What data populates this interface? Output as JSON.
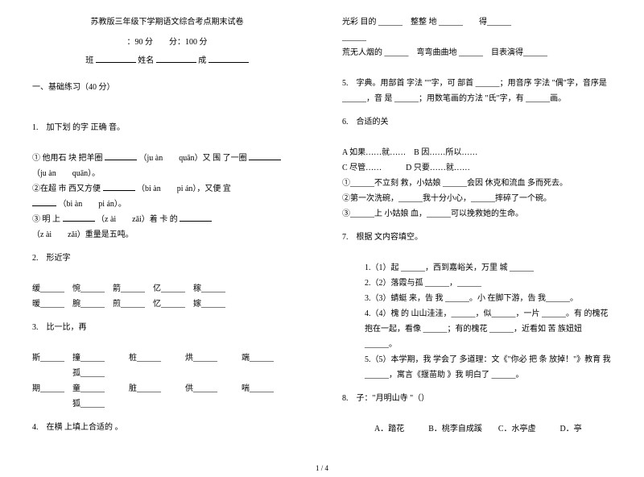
{
  "header": {
    "title": "苏教版三年级下学期语文综合考点期末试卷",
    "time_score": "：90 分　　分：100 分",
    "class_label": "班",
    "name_label": "姓名",
    "score_label": "成"
  },
  "section1": {
    "heading": "一、基础练习（40 分）",
    "q1": {
      "title": "1.　加下划 的字 正确 音。",
      "l1a": "① 他用石 块 把羊圈",
      "l1b": "（ju àn　　quān）又 围 了一圈",
      "l1c": "（ju àn　　quān）。",
      "l2a": "②在超 市 西又方便",
      "l2b": "（bi àn　　pi án），又便 宜",
      "l2c": "（bi àn　　pi án）。",
      "l3a": "③ 明 上",
      "l3b": "（z ài　　zǎi）着 卡 的",
      "l3c": "（z ài　　zǎi）重量是五吨。"
    },
    "q2": {
      "title": "2.　形近字",
      "r1": "缓______　惋______　箭______　亿______　稼______",
      "r2": "暖______　腕______　煎______　忆______　嫁______"
    },
    "q3": {
      "title": "3.　比一比，再",
      "r1": "斯______　撞______　　　桩______　　　烘______　　　端______",
      "r2": "　　　　　孤______",
      "r3": "期______　童______　　　脏______　　　供______　　　喘______",
      "r4": "　　　　　狐______"
    },
    "q4": {
      "title": "4.　在横 上填上合适的 。"
    }
  },
  "right": {
    "l1": "光彩 目的 ______　整整 地 ______　　得______",
    "l2": "______",
    "l3": "荒无人烟的 ______　弯弯曲曲地 ______　目表演得______",
    "q5": "5.　字典。用部首 字法 \"\"字，可 部首 ______；用音序 字法 \"偶\"字，音序是　______，音 是 ______；用数笔画的方法 \"氏\"字，有 ______画。",
    "q6": {
      "title": "6.　合适的关",
      "a": "A 如果……就……　B 因……所以……",
      "b": "C 尽管……　　　D 只要……就……",
      "s1": "①______不立刻 救，小姑娘 ______会因 休克和流血 多而死去。",
      "s2": "②第一次洗碗，______我十分小心，______摔碎了一个碗。",
      "s3": "③______上 小姑娘 血，______可以挽救她的生命。"
    },
    "q7": {
      "title": "7.　根据 文内容填空。",
      "s1": "1.（1）起 ______，西到嘉峪关，万里 城 ______",
      "s2": "2.（2）落霞与孤 ______，______",
      "s3": "3.（3）蜻蜓 来，告 我 ______。小 在脚下游，告 我______。",
      "s4": "4.（4）槐 的 山山洼洼，______，似______，一片 ______。有 的槐花抱在一起，看像 ______；有的槐花 ______，近看如 苦 族妞妞______。",
      "s5": "5.（5）本学期，我 学会了 多道理：文《\"你必 把 条 放掉！\"》教育 我 ______，寓言《揠苗助 》我 明白了 ______。"
    },
    "q8": {
      "title": "8.　子：\"月明山寺 \"（）",
      "opts": "A．踏花　　　B．桃李自成蹊　　C．水亭虚　　　D．亭"
    }
  },
  "footer": "1 / 4"
}
